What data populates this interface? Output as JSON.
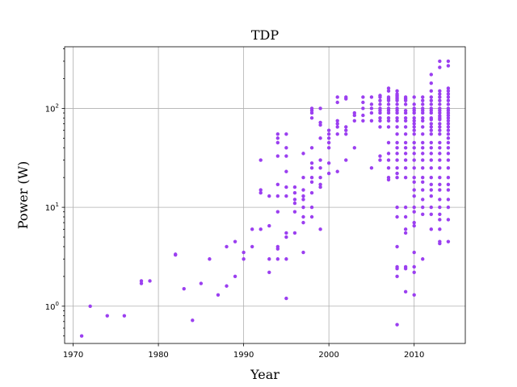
{
  "chart_data": {
    "type": "scatter",
    "title": "TDP",
    "xlabel": "Year",
    "ylabel": "Power (W)",
    "xlim": [
      1969,
      2016
    ],
    "ylim": [
      0.42,
      420
    ],
    "yscale": "log",
    "grid": true,
    "x_ticks": [
      1970,
      1980,
      1990,
      2000,
      2010
    ],
    "y_ticks": [
      {
        "value": 1,
        "base": "10",
        "exp": "0"
      },
      {
        "value": 10,
        "base": "10",
        "exp": "1"
      },
      {
        "value": 100,
        "base": "10",
        "exp": "2"
      }
    ],
    "marker_color": "#9b3ff0",
    "points": [
      [
        1971,
        0.5
      ],
      [
        1972,
        1.0
      ],
      [
        1974,
        0.8
      ],
      [
        1976,
        0.8
      ],
      [
        1978,
        1.7
      ],
      [
        1978,
        1.8
      ],
      [
        1979,
        1.8
      ],
      [
        1982,
        3.3
      ],
      [
        1982,
        3.35
      ],
      [
        1983,
        1.5
      ],
      [
        1984,
        0.72
      ],
      [
        1985,
        1.7
      ],
      [
        1986,
        3.0
      ],
      [
        1987,
        1.3
      ],
      [
        1988,
        4.0
      ],
      [
        1988,
        1.6
      ],
      [
        1989,
        4.5
      ],
      [
        1989,
        2.0
      ],
      [
        1990,
        3.5
      ],
      [
        1990,
        3.0
      ],
      [
        1991,
        6.0
      ],
      [
        1991,
        4.0
      ],
      [
        1992,
        30
      ],
      [
        1992,
        15
      ],
      [
        1992,
        14
      ],
      [
        1992,
        6.0
      ],
      [
        1993,
        13
      ],
      [
        1993,
        6.5
      ],
      [
        1993,
        3.0
      ],
      [
        1993,
        2.2
      ],
      [
        1994,
        55
      ],
      [
        1994,
        50
      ],
      [
        1994,
        45
      ],
      [
        1994,
        33
      ],
      [
        1994,
        17
      ],
      [
        1994,
        13
      ],
      [
        1994,
        9.0
      ],
      [
        1994,
        4.0
      ],
      [
        1994,
        3.8
      ],
      [
        1994,
        3.0
      ],
      [
        1995,
        55
      ],
      [
        1995,
        40
      ],
      [
        1995,
        33
      ],
      [
        1995,
        23
      ],
      [
        1995,
        16
      ],
      [
        1995,
        13
      ],
      [
        1995,
        5.5
      ],
      [
        1995,
        5.0
      ],
      [
        1995,
        3.0
      ],
      [
        1995,
        1.2
      ],
      [
        1996,
        16
      ],
      [
        1996,
        14
      ],
      [
        1996,
        12
      ],
      [
        1996,
        11
      ],
      [
        1996,
        9.0
      ],
      [
        1996,
        5.5
      ],
      [
        1997,
        35
      ],
      [
        1997,
        20
      ],
      [
        1997,
        15
      ],
      [
        1997,
        13
      ],
      [
        1997,
        12
      ],
      [
        1997,
        10
      ],
      [
        1997,
        8.0
      ],
      [
        1997,
        7.0
      ],
      [
        1997,
        3.5
      ],
      [
        1998,
        100
      ],
      [
        1998,
        95
      ],
      [
        1998,
        90
      ],
      [
        1998,
        80
      ],
      [
        1998,
        40
      ],
      [
        1998,
        28
      ],
      [
        1998,
        25
      ],
      [
        1998,
        20
      ],
      [
        1998,
        18
      ],
      [
        1998,
        14
      ],
      [
        1998,
        10
      ],
      [
        1998,
        8.0
      ],
      [
        1999,
        100
      ],
      [
        1999,
        72
      ],
      [
        1999,
        68
      ],
      [
        1999,
        50
      ],
      [
        1999,
        30
      ],
      [
        1999,
        25
      ],
      [
        1999,
        20
      ],
      [
        1999,
        17
      ],
      [
        1999,
        16
      ],
      [
        1999,
        6.0
      ],
      [
        2000,
        60
      ],
      [
        2000,
        55
      ],
      [
        2000,
        50
      ],
      [
        2000,
        45
      ],
      [
        2000,
        40
      ],
      [
        2000,
        28
      ],
      [
        2000,
        22
      ],
      [
        2001,
        130
      ],
      [
        2001,
        115
      ],
      [
        2001,
        75
      ],
      [
        2001,
        70
      ],
      [
        2001,
        65
      ],
      [
        2001,
        55
      ],
      [
        2001,
        23
      ],
      [
        2002,
        130
      ],
      [
        2002,
        125
      ],
      [
        2002,
        65
      ],
      [
        2002,
        60
      ],
      [
        2002,
        55
      ],
      [
        2002,
        30
      ],
      [
        2003,
        90
      ],
      [
        2003,
        85
      ],
      [
        2003,
        75
      ],
      [
        2003,
        40
      ],
      [
        2004,
        130
      ],
      [
        2004,
        115
      ],
      [
        2004,
        100
      ],
      [
        2004,
        85
      ],
      [
        2004,
        75
      ],
      [
        2005,
        130
      ],
      [
        2005,
        110
      ],
      [
        2005,
        100
      ],
      [
        2005,
        90
      ],
      [
        2005,
        75
      ],
      [
        2005,
        25
      ],
      [
        2006,
        135
      ],
      [
        2006,
        130
      ],
      [
        2006,
        120
      ],
      [
        2006,
        110
      ],
      [
        2006,
        100
      ],
      [
        2006,
        95
      ],
      [
        2006,
        90
      ],
      [
        2006,
        80
      ],
      [
        2006,
        75
      ],
      [
        2006,
        65
      ],
      [
        2006,
        33
      ],
      [
        2006,
        30
      ],
      [
        2007,
        160
      ],
      [
        2007,
        150
      ],
      [
        2007,
        130
      ],
      [
        2007,
        125
      ],
      [
        2007,
        120
      ],
      [
        2007,
        110
      ],
      [
        2007,
        100
      ],
      [
        2007,
        95
      ],
      [
        2007,
        90
      ],
      [
        2007,
        80
      ],
      [
        2007,
        75
      ],
      [
        2007,
        65
      ],
      [
        2007,
        45
      ],
      [
        2007,
        35
      ],
      [
        2007,
        30
      ],
      [
        2007,
        25
      ],
      [
        2007,
        20
      ],
      [
        2007,
        19
      ],
      [
        2008,
        150
      ],
      [
        2008,
        140
      ],
      [
        2008,
        135
      ],
      [
        2008,
        130
      ],
      [
        2008,
        125
      ],
      [
        2008,
        120
      ],
      [
        2008,
        110
      ],
      [
        2008,
        100
      ],
      [
        2008,
        95
      ],
      [
        2008,
        90
      ],
      [
        2008,
        80
      ],
      [
        2008,
        75
      ],
      [
        2008,
        65
      ],
      [
        2008,
        55
      ],
      [
        2008,
        45
      ],
      [
        2008,
        40
      ],
      [
        2008,
        35
      ],
      [
        2008,
        30
      ],
      [
        2008,
        25
      ],
      [
        2008,
        22
      ],
      [
        2008,
        20
      ],
      [
        2008,
        10
      ],
      [
        2008,
        8.0
      ],
      [
        2008,
        4.0
      ],
      [
        2008,
        2.5
      ],
      [
        2008,
        2.4
      ],
      [
        2008,
        2.0
      ],
      [
        2008,
        0.65
      ],
      [
        2009,
        130
      ],
      [
        2009,
        125
      ],
      [
        2009,
        120
      ],
      [
        2009,
        110
      ],
      [
        2009,
        95
      ],
      [
        2009,
        90
      ],
      [
        2009,
        80
      ],
      [
        2009,
        75
      ],
      [
        2009,
        65
      ],
      [
        2009,
        55
      ],
      [
        2009,
        45
      ],
      [
        2009,
        40
      ],
      [
        2009,
        35
      ],
      [
        2009,
        30
      ],
      [
        2009,
        25
      ],
      [
        2009,
        20
      ],
      [
        2009,
        10
      ],
      [
        2009,
        8.0
      ],
      [
        2009,
        6.0
      ],
      [
        2009,
        5.5
      ],
      [
        2009,
        2.5
      ],
      [
        2009,
        2.4
      ],
      [
        2009,
        1.4
      ],
      [
        2010,
        130
      ],
      [
        2010,
        110
      ],
      [
        2010,
        100
      ],
      [
        2010,
        95
      ],
      [
        2010,
        90
      ],
      [
        2010,
        80
      ],
      [
        2010,
        75
      ],
      [
        2010,
        70
      ],
      [
        2010,
        65
      ],
      [
        2010,
        60
      ],
      [
        2010,
        55
      ],
      [
        2010,
        45
      ],
      [
        2010,
        40
      ],
      [
        2010,
        35
      ],
      [
        2010,
        30
      ],
      [
        2010,
        25
      ],
      [
        2010,
        20
      ],
      [
        2010,
        18
      ],
      [
        2010,
        15
      ],
      [
        2010,
        13
      ],
      [
        2010,
        10
      ],
      [
        2010,
        9.0
      ],
      [
        2010,
        7.0
      ],
      [
        2010,
        6.5
      ],
      [
        2010,
        3.5
      ],
      [
        2010,
        2.5
      ],
      [
        2010,
        2.2
      ],
      [
        2010,
        1.3
      ],
      [
        2011,
        130
      ],
      [
        2011,
        120
      ],
      [
        2011,
        110
      ],
      [
        2011,
        100
      ],
      [
        2011,
        95
      ],
      [
        2011,
        90
      ],
      [
        2011,
        80
      ],
      [
        2011,
        75
      ],
      [
        2011,
        65
      ],
      [
        2011,
        55
      ],
      [
        2011,
        45
      ],
      [
        2011,
        40
      ],
      [
        2011,
        35
      ],
      [
        2011,
        30
      ],
      [
        2011,
        25
      ],
      [
        2011,
        20
      ],
      [
        2011,
        18
      ],
      [
        2011,
        15
      ],
      [
        2011,
        12
      ],
      [
        2011,
        10
      ],
      [
        2011,
        8.5
      ],
      [
        2011,
        3.0
      ],
      [
        2012,
        220
      ],
      [
        2012,
        180
      ],
      [
        2012,
        150
      ],
      [
        2012,
        130
      ],
      [
        2012,
        120
      ],
      [
        2012,
        110
      ],
      [
        2012,
        100
      ],
      [
        2012,
        95
      ],
      [
        2012,
        90
      ],
      [
        2012,
        80
      ],
      [
        2012,
        77
      ],
      [
        2012,
        70
      ],
      [
        2012,
        65
      ],
      [
        2012,
        60
      ],
      [
        2012,
        55
      ],
      [
        2012,
        45
      ],
      [
        2012,
        40
      ],
      [
        2012,
        35
      ],
      [
        2012,
        30
      ],
      [
        2012,
        25
      ],
      [
        2012,
        20
      ],
      [
        2012,
        17
      ],
      [
        2012,
        15
      ],
      [
        2012,
        13
      ],
      [
        2012,
        10
      ],
      [
        2012,
        8.5
      ],
      [
        2012,
        6.0
      ],
      [
        2013,
        300
      ],
      [
        2013,
        260
      ],
      [
        2013,
        150
      ],
      [
        2013,
        140
      ],
      [
        2013,
        130
      ],
      [
        2013,
        120
      ],
      [
        2013,
        110
      ],
      [
        2013,
        100
      ],
      [
        2013,
        95
      ],
      [
        2013,
        90
      ],
      [
        2013,
        84
      ],
      [
        2013,
        80
      ],
      [
        2013,
        77
      ],
      [
        2013,
        70
      ],
      [
        2013,
        65
      ],
      [
        2013,
        60
      ],
      [
        2013,
        55
      ],
      [
        2013,
        45
      ],
      [
        2013,
        40
      ],
      [
        2013,
        35
      ],
      [
        2013,
        30
      ],
      [
        2013,
        25
      ],
      [
        2013,
        20
      ],
      [
        2013,
        17
      ],
      [
        2013,
        15
      ],
      [
        2013,
        12
      ],
      [
        2013,
        10
      ],
      [
        2013,
        8.5
      ],
      [
        2013,
        7.5
      ],
      [
        2013,
        6.0
      ],
      [
        2013,
        4.5
      ],
      [
        2013,
        4.3
      ],
      [
        2014,
        300
      ],
      [
        2014,
        270
      ],
      [
        2014,
        160
      ],
      [
        2014,
        150
      ],
      [
        2014,
        140
      ],
      [
        2014,
        130
      ],
      [
        2014,
        120
      ],
      [
        2014,
        110
      ],
      [
        2014,
        100
      ],
      [
        2014,
        95
      ],
      [
        2014,
        90
      ],
      [
        2014,
        85
      ],
      [
        2014,
        80
      ],
      [
        2014,
        75
      ],
      [
        2014,
        70
      ],
      [
        2014,
        65
      ],
      [
        2014,
        60
      ],
      [
        2014,
        55
      ],
      [
        2014,
        50
      ],
      [
        2014,
        45
      ],
      [
        2014,
        40
      ],
      [
        2014,
        35
      ],
      [
        2014,
        30
      ],
      [
        2014,
        25
      ],
      [
        2014,
        20
      ],
      [
        2014,
        17
      ],
      [
        2014,
        15
      ],
      [
        2014,
        12
      ],
      [
        2014,
        10
      ],
      [
        2014,
        7.5
      ],
      [
        2014,
        4.5
      ]
    ]
  }
}
